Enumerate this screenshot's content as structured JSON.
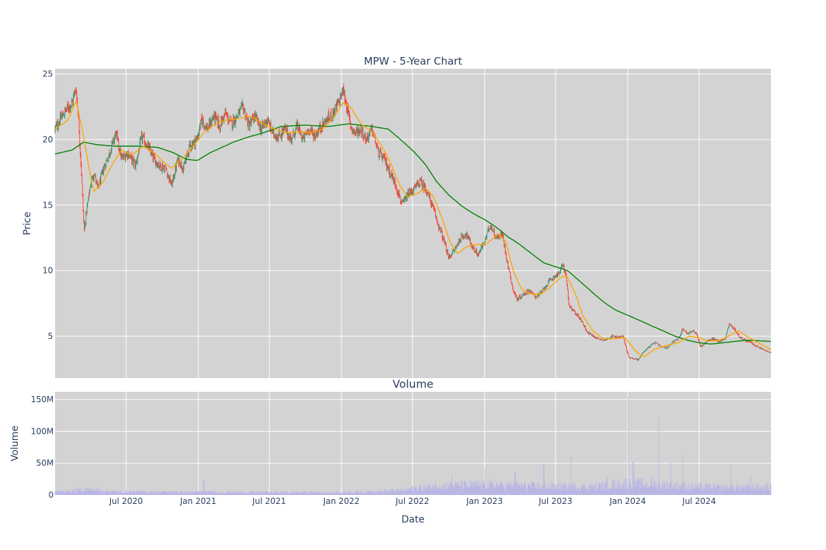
{
  "chart_data": [
    {
      "type": "candlestick",
      "title": "MPW - 5-Year Chart",
      "xlabel": "",
      "ylabel": "Price",
      "ylim": [
        1.8,
        25.4
      ],
      "xlim": [
        "2020-01-02",
        "2024-12-31"
      ],
      "yticks": [
        5,
        10,
        15,
        20,
        25
      ],
      "grid": true,
      "legend": "none",
      "colors": {
        "up": "#3d9970",
        "down": "#ff4136",
        "ma_short": "#ffa500",
        "ma_long": "#008000",
        "background": "#d3d3d3"
      },
      "close_keypoints": [
        [
          "2020-01-02",
          20.8
        ],
        [
          "2020-01-20",
          21.8
        ],
        [
          "2020-02-05",
          22.5
        ],
        [
          "2020-02-15",
          22.8
        ],
        [
          "2020-02-24",
          24.0
        ],
        [
          "2020-03-01",
          22.0
        ],
        [
          "2020-03-10",
          17.0
        ],
        [
          "2020-03-16",
          13.0
        ],
        [
          "2020-03-22",
          14.5
        ],
        [
          "2020-04-01",
          16.5
        ],
        [
          "2020-04-10",
          17.5
        ],
        [
          "2020-04-20",
          16.2
        ],
        [
          "2020-05-05",
          17.8
        ],
        [
          "2020-05-20",
          19.0
        ],
        [
          "2020-06-05",
          20.5
        ],
        [
          "2020-06-20",
          18.5
        ],
        [
          "2020-07-05",
          19.0
        ],
        [
          "2020-07-25",
          18.0
        ],
        [
          "2020-08-10",
          20.2
        ],
        [
          "2020-08-25",
          19.5
        ],
        [
          "2020-09-10",
          18.5
        ],
        [
          "2020-09-25",
          18.0
        ],
        [
          "2020-10-10",
          17.8
        ],
        [
          "2020-10-25",
          16.5
        ],
        [
          "2020-11-10",
          18.5
        ],
        [
          "2020-11-25",
          17.8
        ],
        [
          "2020-12-10",
          19.5
        ],
        [
          "2020-12-28",
          20.0
        ],
        [
          "2021-01-10",
          21.5
        ],
        [
          "2021-01-25",
          20.8
        ],
        [
          "2021-02-10",
          21.8
        ],
        [
          "2021-02-25",
          21.0
        ],
        [
          "2021-03-10",
          22.0
        ],
        [
          "2021-03-25",
          21.2
        ],
        [
          "2021-04-10",
          21.8
        ],
        [
          "2021-04-25",
          22.5
        ],
        [
          "2021-05-10",
          21.0
        ],
        [
          "2021-05-25",
          21.8
        ],
        [
          "2021-06-10",
          20.8
        ],
        [
          "2021-06-25",
          21.5
        ],
        [
          "2021-07-10",
          20.5
        ],
        [
          "2021-07-25",
          20.2
        ],
        [
          "2021-08-10",
          20.8
        ],
        [
          "2021-08-25",
          20.0
        ],
        [
          "2021-09-10",
          21.0
        ],
        [
          "2021-09-25",
          20.0
        ],
        [
          "2021-10-10",
          20.8
        ],
        [
          "2021-10-25",
          20.3
        ],
        [
          "2021-11-10",
          21.0
        ],
        [
          "2021-11-25",
          21.5
        ],
        [
          "2021-12-10",
          22.0
        ],
        [
          "2021-12-25",
          22.8
        ],
        [
          "2022-01-05",
          23.8
        ],
        [
          "2022-01-15",
          22.5
        ],
        [
          "2022-01-25",
          21.0
        ],
        [
          "2022-02-05",
          20.5
        ],
        [
          "2022-02-20",
          20.8
        ],
        [
          "2022-03-05",
          20.0
        ],
        [
          "2022-03-20",
          20.8
        ],
        [
          "2022-04-05",
          19.0
        ],
        [
          "2022-04-20",
          18.5
        ],
        [
          "2022-05-05",
          17.5
        ],
        [
          "2022-05-20",
          16.5
        ],
        [
          "2022-06-05",
          15.0
        ],
        [
          "2022-06-20",
          15.8
        ],
        [
          "2022-07-05",
          16.2
        ],
        [
          "2022-07-20",
          16.8
        ],
        [
          "2022-08-05",
          16.2
        ],
        [
          "2022-08-20",
          15.0
        ],
        [
          "2022-09-05",
          13.5
        ],
        [
          "2022-09-20",
          12.2
        ],
        [
          "2022-10-01",
          11.0
        ],
        [
          "2022-10-15",
          11.5
        ],
        [
          "2022-11-01",
          12.5
        ],
        [
          "2022-11-15",
          12.8
        ],
        [
          "2022-12-01",
          11.8
        ],
        [
          "2022-12-15",
          11.2
        ],
        [
          "2023-01-01",
          12.2
        ],
        [
          "2023-01-15",
          13.5
        ],
        [
          "2023-02-01",
          12.5
        ],
        [
          "2023-02-15",
          12.8
        ],
        [
          "2023-03-01",
          10.5
        ],
        [
          "2023-03-15",
          8.5
        ],
        [
          "2023-03-25",
          7.8
        ],
        [
          "2023-04-10",
          8.2
        ],
        [
          "2023-04-25",
          8.5
        ],
        [
          "2023-05-10",
          8.0
        ],
        [
          "2023-05-25",
          8.3
        ],
        [
          "2023-06-10",
          9.0
        ],
        [
          "2023-06-25",
          9.5
        ],
        [
          "2023-07-10",
          9.8
        ],
        [
          "2023-07-20",
          10.5
        ],
        [
          "2023-07-28",
          9.5
        ],
        [
          "2023-08-05",
          7.2
        ],
        [
          "2023-08-20",
          6.8
        ],
        [
          "2023-09-05",
          6.2
        ],
        [
          "2023-09-20",
          5.3
        ],
        [
          "2023-10-05",
          5.0
        ],
        [
          "2023-10-20",
          4.8
        ],
        [
          "2023-11-05",
          4.7
        ],
        [
          "2023-11-20",
          5.0
        ],
        [
          "2023-12-05",
          4.9
        ],
        [
          "2023-12-20",
          5.0
        ],
        [
          "2024-01-03",
          3.4
        ],
        [
          "2024-01-15",
          3.3
        ],
        [
          "2024-01-28",
          3.2
        ],
        [
          "2024-02-10",
          3.8
        ],
        [
          "2024-02-25",
          4.2
        ],
        [
          "2024-03-10",
          4.5
        ],
        [
          "2024-03-25",
          4.2
        ],
        [
          "2024-04-10",
          4.1
        ],
        [
          "2024-04-25",
          4.6
        ],
        [
          "2024-05-10",
          4.8
        ],
        [
          "2024-05-20",
          5.6
        ],
        [
          "2024-06-01",
          5.2
        ],
        [
          "2024-06-15",
          5.4
        ],
        [
          "2024-06-25",
          5.1
        ],
        [
          "2024-07-05",
          4.2
        ],
        [
          "2024-07-20",
          4.6
        ],
        [
          "2024-08-05",
          4.8
        ],
        [
          "2024-08-20",
          4.6
        ],
        [
          "2024-09-05",
          4.8
        ],
        [
          "2024-09-15",
          5.9
        ],
        [
          "2024-09-28",
          5.6
        ],
        [
          "2024-10-10",
          5.0
        ],
        [
          "2024-10-25",
          4.7
        ],
        [
          "2024-11-10",
          4.5
        ],
        [
          "2024-11-25",
          4.2
        ],
        [
          "2024-12-10",
          4.0
        ],
        [
          "2024-12-31",
          3.7
        ]
      ],
      "ma_short_keypoints": [
        [
          "2020-01-02",
          20.8
        ],
        [
          "2020-02-05",
          21.5
        ],
        [
          "2020-02-25",
          23.0
        ],
        [
          "2020-03-10",
          21.0
        ],
        [
          "2020-03-25",
          18.5
        ],
        [
          "2020-04-10",
          16.0
        ],
        [
          "2020-05-05",
          16.8
        ],
        [
          "2020-05-25",
          18.0
        ],
        [
          "2020-06-20",
          19.2
        ],
        [
          "2020-07-15",
          18.8
        ],
        [
          "2020-08-15",
          19.5
        ],
        [
          "2020-09-10",
          19.0
        ],
        [
          "2020-10-05",
          18.3
        ],
        [
          "2020-10-25",
          17.8
        ],
        [
          "2020-11-20",
          18.5
        ],
        [
          "2020-12-20",
          19.5
        ],
        [
          "2021-01-15",
          20.5
        ],
        [
          "2021-02-15",
          21.2
        ],
        [
          "2021-03-15",
          21.5
        ],
        [
          "2021-04-15",
          21.6
        ],
        [
          "2021-05-15",
          21.8
        ],
        [
          "2021-06-15",
          21.2
        ],
        [
          "2021-07-15",
          20.8
        ],
        [
          "2021-08-15",
          20.5
        ],
        [
          "2021-09-15",
          20.6
        ],
        [
          "2021-10-15",
          20.5
        ],
        [
          "2021-11-15",
          20.8
        ],
        [
          "2021-12-15",
          21.8
        ],
        [
          "2022-01-05",
          22.8
        ],
        [
          "2022-01-25",
          22.5
        ],
        [
          "2022-02-20",
          21.2
        ],
        [
          "2022-03-20",
          20.6
        ],
        [
          "2022-04-15",
          19.5
        ],
        [
          "2022-05-10",
          18.0
        ],
        [
          "2022-05-30",
          16.5
        ],
        [
          "2022-06-20",
          15.6
        ],
        [
          "2022-07-15",
          15.9
        ],
        [
          "2022-08-05",
          16.3
        ],
        [
          "2022-08-25",
          15.6
        ],
        [
          "2022-09-15",
          14.0
        ],
        [
          "2022-10-05",
          12.2
        ],
        [
          "2022-10-25",
          11.3
        ],
        [
          "2022-11-15",
          11.8
        ],
        [
          "2022-12-10",
          12.0
        ],
        [
          "2023-01-05",
          12.0
        ],
        [
          "2023-02-05",
          12.8
        ],
        [
          "2023-02-25",
          12.2
        ],
        [
          "2023-03-15",
          10.0
        ],
        [
          "2023-04-05",
          8.6
        ],
        [
          "2023-04-30",
          8.2
        ],
        [
          "2023-05-25",
          8.2
        ],
        [
          "2023-06-20",
          8.8
        ],
        [
          "2023-07-15",
          9.5
        ],
        [
          "2023-07-30",
          9.6
        ],
        [
          "2023-08-20",
          8.3
        ],
        [
          "2023-09-10",
          6.5
        ],
        [
          "2023-10-05",
          5.4
        ],
        [
          "2023-11-01",
          4.8
        ],
        [
          "2023-12-01",
          4.8
        ],
        [
          "2023-12-25",
          4.9
        ],
        [
          "2024-01-20",
          3.9
        ],
        [
          "2024-02-10",
          3.4
        ],
        [
          "2024-03-10",
          4.0
        ],
        [
          "2024-04-10",
          4.3
        ],
        [
          "2024-05-10",
          4.5
        ],
        [
          "2024-06-05",
          5.0
        ],
        [
          "2024-07-01",
          4.9
        ],
        [
          "2024-07-25",
          4.6
        ],
        [
          "2024-08-25",
          4.7
        ],
        [
          "2024-09-20",
          5.1
        ],
        [
          "2024-10-10",
          5.4
        ],
        [
          "2024-11-05",
          4.9
        ],
        [
          "2024-12-05",
          4.4
        ],
        [
          "2024-12-31",
          4.0
        ]
      ],
      "ma_long_keypoints": [
        [
          "2020-01-02",
          18.9
        ],
        [
          "2020-02-15",
          19.2
        ],
        [
          "2020-03-15",
          19.8
        ],
        [
          "2020-04-20",
          19.6
        ],
        [
          "2020-06-01",
          19.5
        ],
        [
          "2020-08-01",
          19.5
        ],
        [
          "2020-09-20",
          19.4
        ],
        [
          "2020-10-30",
          19.0
        ],
        [
          "2020-12-01",
          18.5
        ],
        [
          "2020-12-30",
          18.4
        ],
        [
          "2021-02-01",
          19.0
        ],
        [
          "2021-04-01",
          19.8
        ],
        [
          "2021-05-10",
          20.2
        ],
        [
          "2021-06-15",
          20.5
        ],
        [
          "2021-08-01",
          21.0
        ],
        [
          "2021-10-01",
          21.1
        ],
        [
          "2021-12-01",
          21.0
        ],
        [
          "2022-01-20",
          21.2
        ],
        [
          "2022-03-20",
          21.0
        ],
        [
          "2022-05-01",
          20.8
        ],
        [
          "2022-06-01",
          20.0
        ],
        [
          "2022-07-01",
          19.2
        ],
        [
          "2022-08-01",
          18.2
        ],
        [
          "2022-09-01",
          16.8
        ],
        [
          "2022-10-01",
          15.8
        ],
        [
          "2022-11-01",
          15.0
        ],
        [
          "2022-12-01",
          14.4
        ],
        [
          "2023-01-01",
          13.9
        ],
        [
          "2023-02-01",
          13.3
        ],
        [
          "2023-03-01",
          12.6
        ],
        [
          "2023-04-01",
          12.0
        ],
        [
          "2023-05-01",
          11.3
        ],
        [
          "2023-06-01",
          10.6
        ],
        [
          "2023-07-01",
          10.3
        ],
        [
          "2023-08-01",
          10.0
        ],
        [
          "2023-09-01",
          9.2
        ],
        [
          "2023-10-01",
          8.4
        ],
        [
          "2023-11-01",
          7.6
        ],
        [
          "2023-12-01",
          7.0
        ],
        [
          "2024-01-01",
          6.6
        ],
        [
          "2024-02-01",
          6.2
        ],
        [
          "2024-03-01",
          5.8
        ],
        [
          "2024-04-01",
          5.4
        ],
        [
          "2024-05-01",
          5.0
        ],
        [
          "2024-06-01",
          4.7
        ],
        [
          "2024-07-01",
          4.5
        ],
        [
          "2024-08-01",
          4.4
        ],
        [
          "2024-09-01",
          4.5
        ],
        [
          "2024-10-01",
          4.6
        ],
        [
          "2024-11-01",
          4.7
        ],
        [
          "2024-12-31",
          4.6
        ]
      ]
    },
    {
      "type": "bar",
      "title": "Volume",
      "xlabel": "Date",
      "ylabel": "Volume",
      "ylim": [
        0,
        162000000
      ],
      "yticks": [
        [
          0,
          "0"
        ],
        [
          50000000,
          "50M"
        ],
        [
          100000000,
          "100M"
        ],
        [
          150000000,
          "150M"
        ]
      ],
      "xticks": [
        [
          "2020-07-01",
          "Jul 2020"
        ],
        [
          "2021-01-01",
          "Jan 2021"
        ],
        [
          "2021-07-01",
          "Jul 2021"
        ],
        [
          "2022-01-01",
          "Jan 2022"
        ],
        [
          "2022-07-01",
          "Jul 2022"
        ],
        [
          "2023-01-01",
          "Jan 2023"
        ],
        [
          "2023-07-01",
          "Jul 2023"
        ],
        [
          "2024-01-01",
          "Jan 2024"
        ],
        [
          "2024-07-01",
          "Jul 2024"
        ]
      ],
      "grid": true,
      "colors": {
        "bar": "#b8b4e6"
      },
      "volume_keypoints": [
        [
          "2020-01-02",
          5000000
        ],
        [
          "2020-02-20",
          6000000
        ],
        [
          "2020-03-20",
          9000000
        ],
        [
          "2020-06-01",
          5000000
        ],
        [
          "2021-01-01",
          4500000
        ],
        [
          "2021-07-01",
          4000000
        ],
        [
          "2022-01-01",
          4000000
        ],
        [
          "2022-06-01",
          7000000
        ],
        [
          "2022-09-01",
          14000000
        ],
        [
          "2023-01-01",
          15000000
        ],
        [
          "2023-06-01",
          13000000
        ],
        [
          "2023-10-01",
          12000000
        ],
        [
          "2024-01-01",
          18000000
        ],
        [
          "2024-05-01",
          14000000
        ],
        [
          "2024-09-01",
          11000000
        ],
        [
          "2024-12-31",
          12000000
        ]
      ],
      "volume_spikes": [
        [
          "2021-01-15",
          23000000
        ],
        [
          "2022-10-10",
          32000000
        ],
        [
          "2023-01-03",
          42000000
        ],
        [
          "2023-03-20",
          35000000
        ],
        [
          "2023-06-01",
          48000000
        ],
        [
          "2023-08-10",
          60000000
        ],
        [
          "2023-11-10",
          30000000
        ],
        [
          "2024-01-02",
          155000000
        ],
        [
          "2024-01-15",
          52000000
        ],
        [
          "2024-03-01",
          30000000
        ],
        [
          "2024-03-20",
          122000000
        ],
        [
          "2024-04-20",
          52000000
        ],
        [
          "2024-05-20",
          65000000
        ],
        [
          "2024-09-20",
          45000000
        ],
        [
          "2024-11-10",
          30000000
        ]
      ]
    }
  ]
}
